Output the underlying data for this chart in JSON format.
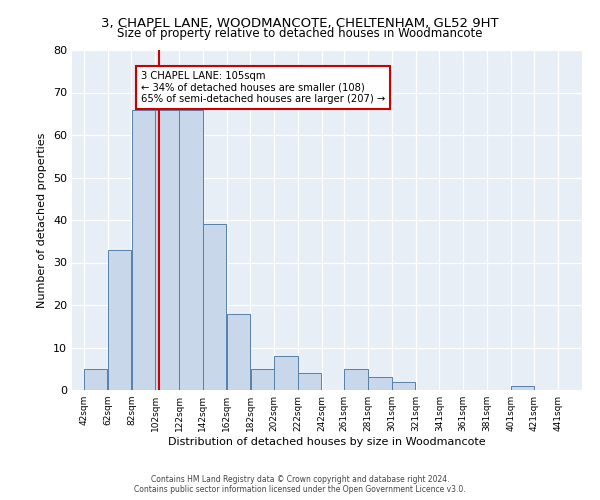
{
  "title": "3, CHAPEL LANE, WOODMANCOTE, CHELTENHAM, GL52 9HT",
  "subtitle": "Size of property relative to detached houses in Woodmancote",
  "xlabel": "Distribution of detached houses by size in Woodmancote",
  "ylabel": "Number of detached properties",
  "bar_left_edges": [
    42,
    62,
    82,
    102,
    122,
    142,
    162,
    182,
    202,
    222,
    242,
    261,
    281,
    301,
    321,
    341,
    361,
    381,
    401,
    421
  ],
  "bar_widths": [
    20,
    20,
    20,
    20,
    20,
    20,
    20,
    20,
    20,
    20,
    19,
    20,
    20,
    20,
    20,
    20,
    20,
    20,
    20,
    20
  ],
  "bar_heights": [
    5,
    33,
    66,
    66,
    66,
    39,
    18,
    5,
    8,
    4,
    0,
    5,
    3,
    2,
    0,
    0,
    0,
    0,
    1,
    0
  ],
  "bar_color": "#c8d8ea",
  "bar_edge_color": "#5580a8",
  "tick_labels": [
    "42sqm",
    "62sqm",
    "82sqm",
    "102sqm",
    "122sqm",
    "142sqm",
    "162sqm",
    "182sqm",
    "202sqm",
    "222sqm",
    "242sqm",
    "261sqm",
    "281sqm",
    "301sqm",
    "321sqm",
    "341sqm",
    "361sqm",
    "381sqm",
    "401sqm",
    "421sqm",
    "441sqm"
  ],
  "tick_positions": [
    42,
    62,
    82,
    102,
    122,
    142,
    162,
    182,
    202,
    222,
    242,
    261,
    281,
    301,
    321,
    341,
    361,
    381,
    401,
    421,
    441
  ],
  "ylim": [
    0,
    80
  ],
  "xlim": [
    32,
    461
  ],
  "yticks": [
    0,
    10,
    20,
    30,
    40,
    50,
    60,
    70,
    80
  ],
  "vline_x": 105,
  "vline_color": "#cc0000",
  "annotation_text": "3 CHAPEL LANE: 105sqm\n← 34% of detached houses are smaller (108)\n65% of semi-detached houses are larger (207) →",
  "annotation_box_color": "#ffffff",
  "annotation_border_color": "#cc0000",
  "footer_line1": "Contains HM Land Registry data © Crown copyright and database right 2024.",
  "footer_line2": "Contains public sector information licensed under the Open Government Licence v3.0.",
  "fig_bg_color": "#ffffff",
  "plot_bg_color": "#e8eef5"
}
